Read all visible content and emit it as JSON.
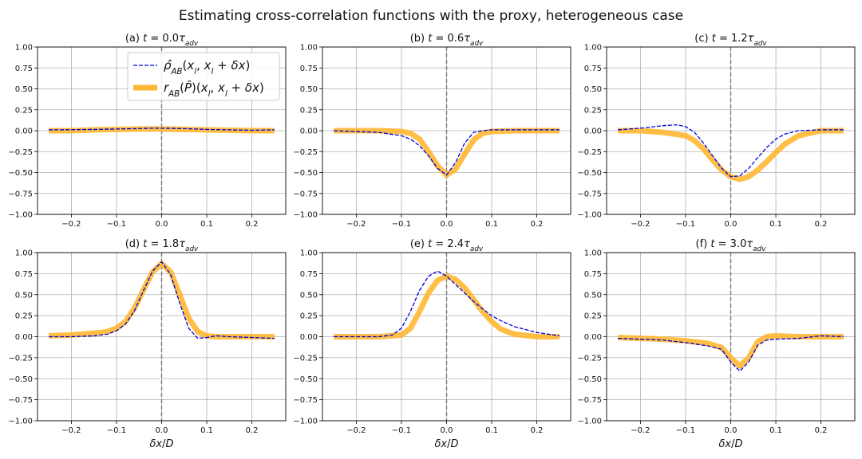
{
  "figure_title": "Estimating cross-correlation functions with the proxy, heterogeneous case",
  "legend": {
    "estimate_label": "ρ̂_AB(x_l, x_l + δx)",
    "proxy_label": "r_AB(P̂)(x_l, x_l + δx)"
  },
  "colors": {
    "estimate": "#0000dd",
    "proxy": "#ffb833",
    "grid": "#b0b0b0",
    "vline": "#808080"
  },
  "chart_data": [
    {
      "type": "line",
      "panel": "(a)",
      "title_prefix": "(a) ",
      "t_value": "0.0",
      "xlabel": "",
      "ylabel": "",
      "xlim": [
        -0.275,
        0.275
      ],
      "ylim": [
        -1.0,
        1.0
      ],
      "xticks": [
        "-0.2",
        "-0.1",
        "0.0",
        "0.1",
        "0.2"
      ],
      "yticks": [
        "-1.00",
        "-0.75",
        "-0.50",
        "-0.25",
        "0.00",
        "0.25",
        "0.50",
        "0.75",
        "1.00"
      ],
      "legend_position": "upper-right",
      "series": [
        {
          "x": [
            -0.25,
            -0.2,
            -0.15,
            -0.1,
            -0.05,
            0.0,
            0.05,
            0.1,
            0.15,
            0.2,
            0.25
          ],
          "y": [
            0.0,
            0.0,
            0.01,
            0.015,
            0.02,
            0.02,
            0.015,
            0.01,
            0.005,
            0.0,
            0.0
          ]
        },
        {
          "x": [
            -0.25,
            -0.2,
            -0.15,
            -0.1,
            -0.05,
            -0.02,
            0.0,
            0.05,
            0.1,
            0.15,
            0.2,
            0.25
          ],
          "y": [
            0.01,
            0.012,
            0.015,
            0.02,
            0.025,
            0.03,
            0.03,
            0.025,
            0.015,
            0.01,
            0.005,
            0.01
          ]
        }
      ]
    },
    {
      "type": "line",
      "panel": "(b)",
      "title_prefix": "(b) ",
      "t_value": "0.6",
      "xlabel": "",
      "ylabel": "",
      "xlim": [
        -0.275,
        0.275
      ],
      "ylim": [
        -1.0,
        1.0
      ],
      "xticks": [
        "-0.2",
        "-0.1",
        "0.0",
        "0.1",
        "0.2"
      ],
      "yticks": [
        "-1.00",
        "-0.75",
        "-0.50",
        "-0.25",
        "0.00",
        "0.25",
        "0.50",
        "0.75",
        "1.00"
      ],
      "series": [
        {
          "x": [
            -0.25,
            -0.2,
            -0.15,
            -0.1,
            -0.08,
            -0.06,
            -0.04,
            -0.02,
            0.0,
            0.02,
            0.04,
            0.06,
            0.08,
            0.1,
            0.15,
            0.2,
            0.25
          ],
          "y": [
            0.0,
            0.0,
            0.0,
            -0.01,
            -0.03,
            -0.1,
            -0.25,
            -0.42,
            -0.53,
            -0.46,
            -0.28,
            -0.11,
            -0.03,
            -0.01,
            0.0,
            0.0,
            0.0
          ]
        },
        {
          "x": [
            -0.25,
            -0.2,
            -0.15,
            -0.1,
            -0.08,
            -0.06,
            -0.04,
            -0.02,
            0.0,
            0.02,
            0.04,
            0.06,
            0.08,
            0.1,
            0.15,
            0.2,
            0.25
          ],
          "y": [
            0.0,
            -0.01,
            -0.02,
            -0.06,
            -0.1,
            -0.18,
            -0.3,
            -0.45,
            -0.53,
            -0.38,
            -0.15,
            -0.02,
            0.0,
            0.01,
            0.01,
            0.01,
            0.01
          ]
        }
      ]
    },
    {
      "type": "line",
      "panel": "(c)",
      "title_prefix": "(c) ",
      "t_value": "1.2",
      "xlabel": "",
      "ylabel": "",
      "xlim": [
        -0.275,
        0.275
      ],
      "ylim": [
        -1.0,
        1.0
      ],
      "xticks": [
        "-0.2",
        "-0.1",
        "0.0",
        "0.1",
        "0.2"
      ],
      "yticks": [
        "-1.00",
        "-0.75",
        "-0.50",
        "-0.25",
        "0.00",
        "0.25",
        "0.50",
        "0.75",
        "1.00"
      ],
      "series": [
        {
          "x": [
            -0.25,
            -0.2,
            -0.15,
            -0.1,
            -0.08,
            -0.06,
            -0.04,
            -0.02,
            0.0,
            0.02,
            0.04,
            0.06,
            0.08,
            0.1,
            0.12,
            0.15,
            0.2,
            0.25
          ],
          "y": [
            0.0,
            0.0,
            -0.02,
            -0.06,
            -0.12,
            -0.22,
            -0.35,
            -0.47,
            -0.55,
            -0.58,
            -0.55,
            -0.47,
            -0.37,
            -0.26,
            -0.16,
            -0.06,
            0.0,
            0.0
          ]
        },
        {
          "x": [
            -0.25,
            -0.2,
            -0.15,
            -0.12,
            -0.1,
            -0.08,
            -0.06,
            -0.04,
            -0.02,
            0.0,
            0.02,
            0.04,
            0.06,
            0.08,
            0.1,
            0.12,
            0.15,
            0.2,
            0.25
          ],
          "y": [
            0.01,
            0.03,
            0.06,
            0.07,
            0.05,
            -0.02,
            -0.15,
            -0.3,
            -0.45,
            -0.55,
            -0.54,
            -0.45,
            -0.32,
            -0.2,
            -0.1,
            -0.04,
            0.0,
            0.01,
            0.01
          ]
        }
      ]
    },
    {
      "type": "line",
      "panel": "(d)",
      "title_prefix": "(d) ",
      "t_value": "1.8",
      "xlabel": "δx/D",
      "ylabel": "",
      "xlim": [
        -0.275,
        0.275
      ],
      "ylim": [
        -1.0,
        1.0
      ],
      "xticks": [
        "-0.2",
        "-0.1",
        "0.0",
        "0.1",
        "0.2"
      ],
      "yticks": [
        "-1.00",
        "-0.75",
        "-0.50",
        "-0.25",
        "0.00",
        "0.25",
        "0.50",
        "0.75",
        "1.00"
      ],
      "series": [
        {
          "x": [
            -0.25,
            -0.2,
            -0.15,
            -0.12,
            -0.1,
            -0.08,
            -0.06,
            -0.04,
            -0.02,
            0.0,
            0.02,
            0.04,
            0.06,
            0.08,
            0.1,
            0.12,
            0.15,
            0.2,
            0.25
          ],
          "y": [
            0.01,
            0.02,
            0.04,
            0.06,
            0.1,
            0.18,
            0.34,
            0.56,
            0.77,
            0.87,
            0.77,
            0.5,
            0.22,
            0.06,
            0.01,
            0.0,
            0.0,
            0.0,
            0.0
          ]
        },
        {
          "x": [
            -0.25,
            -0.2,
            -0.15,
            -0.12,
            -0.1,
            -0.08,
            -0.06,
            -0.04,
            -0.02,
            0.0,
            0.02,
            0.04,
            0.06,
            0.08,
            0.1,
            0.12,
            0.15,
            0.2,
            0.25
          ],
          "y": [
            0.0,
            0.0,
            0.01,
            0.03,
            0.07,
            0.15,
            0.31,
            0.55,
            0.78,
            0.89,
            0.74,
            0.4,
            0.1,
            -0.02,
            -0.01,
            0.01,
            0.0,
            -0.01,
            -0.02
          ]
        }
      ]
    },
    {
      "type": "line",
      "panel": "(e)",
      "title_prefix": "(e) ",
      "t_value": "2.4",
      "xlabel": "δx/D",
      "ylabel": "",
      "xlim": [
        -0.275,
        0.275
      ],
      "ylim": [
        -1.0,
        1.0
      ],
      "xticks": [
        "-0.2",
        "-0.1",
        "0.0",
        "0.1",
        "0.2"
      ],
      "yticks": [
        "-1.00",
        "-0.75",
        "-0.50",
        "-0.25",
        "0.00",
        "0.25",
        "0.50",
        "0.75",
        "1.00"
      ],
      "series": [
        {
          "x": [
            -0.25,
            -0.2,
            -0.15,
            -0.1,
            -0.08,
            -0.06,
            -0.04,
            -0.02,
            0.0,
            0.02,
            0.04,
            0.06,
            0.08,
            0.1,
            0.12,
            0.15,
            0.2,
            0.25
          ],
          "y": [
            0.0,
            0.0,
            0.0,
            0.02,
            0.1,
            0.3,
            0.52,
            0.67,
            0.72,
            0.68,
            0.58,
            0.44,
            0.3,
            0.18,
            0.09,
            0.03,
            0.0,
            0.0
          ]
        },
        {
          "x": [
            -0.25,
            -0.2,
            -0.15,
            -0.12,
            -0.1,
            -0.08,
            -0.06,
            -0.04,
            -0.02,
            0.0,
            0.02,
            0.04,
            0.06,
            0.08,
            0.1,
            0.12,
            0.15,
            0.2,
            0.25
          ],
          "y": [
            0.0,
            0.0,
            0.0,
            0.02,
            0.1,
            0.3,
            0.55,
            0.72,
            0.78,
            0.72,
            0.62,
            0.52,
            0.42,
            0.33,
            0.25,
            0.19,
            0.12,
            0.05,
            0.01
          ]
        }
      ]
    },
    {
      "type": "line",
      "panel": "(f)",
      "title_prefix": "(f) ",
      "t_value": "3.0",
      "xlabel": "δx/D",
      "ylabel": "",
      "xlim": [
        -0.275,
        0.275
      ],
      "ylim": [
        -1.0,
        1.0
      ],
      "xticks": [
        "-0.2",
        "-0.1",
        "0.0",
        "0.1",
        "0.2"
      ],
      "yticks": [
        "-1.00",
        "-0.75",
        "-0.50",
        "-0.25",
        "0.00",
        "0.25",
        "0.50",
        "0.75",
        "1.00"
      ],
      "series": [
        {
          "x": [
            -0.25,
            -0.2,
            -0.15,
            -0.1,
            -0.05,
            -0.02,
            0.0,
            0.02,
            0.04,
            0.06,
            0.08,
            0.1,
            0.15,
            0.2,
            0.25
          ],
          "y": [
            -0.01,
            -0.02,
            -0.03,
            -0.05,
            -0.08,
            -0.13,
            -0.25,
            -0.35,
            -0.25,
            -0.06,
            0.0,
            0.01,
            0.0,
            0.0,
            0.0
          ]
        },
        {
          "x": [
            -0.25,
            -0.2,
            -0.15,
            -0.1,
            -0.05,
            -0.02,
            0.0,
            0.02,
            0.04,
            0.06,
            0.08,
            0.1,
            0.15,
            0.2,
            0.25
          ],
          "y": [
            -0.02,
            -0.03,
            -0.04,
            -0.07,
            -0.11,
            -0.15,
            -0.3,
            -0.41,
            -0.3,
            -0.1,
            -0.04,
            -0.03,
            -0.02,
            0.01,
            0.0
          ]
        }
      ]
    }
  ]
}
